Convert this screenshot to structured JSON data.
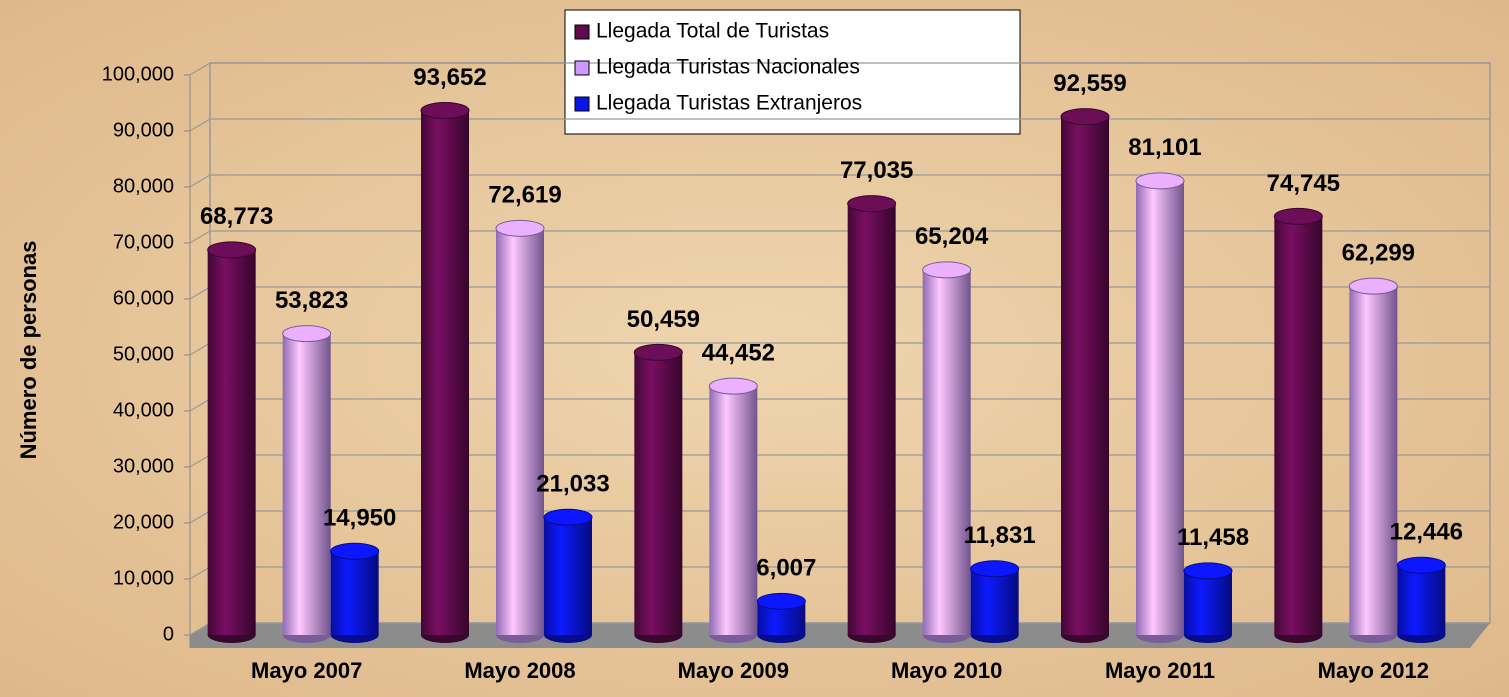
{
  "chart_data": {
    "type": "bar",
    "y_label": "Número de personas",
    "categories": [
      "Mayo 2007",
      "Mayo 2008",
      "Mayo 2009",
      "Mayo 2010",
      "Mayo 2011",
      "Mayo 2012"
    ],
    "series": [
      {
        "name": "Llegada Total de Turistas",
        "color": "#5e0b4c",
        "values": [
          68773,
          93652,
          50459,
          77035,
          92559,
          74745
        ],
        "value_labels": [
          "68,773",
          "93,652",
          "50,459",
          "77,035",
          "92,559",
          "74,745"
        ]
      },
      {
        "name": "Llegada Turistas Nacionales",
        "color": "#cc99ff",
        "values": [
          53823,
          72619,
          44452,
          65204,
          81101,
          62299
        ],
        "value_labels": [
          "53,823",
          "72,619",
          "44,452",
          "65,204",
          "81,101",
          "62,299"
        ]
      },
      {
        "name": "Llegada Turistas Extranjeros",
        "color": "#0a14e6",
        "values": [
          14950,
          21033,
          6007,
          11831,
          11458,
          12446
        ],
        "value_labels": [
          "14,950",
          "21,033",
          "6,007",
          "11,831",
          "11,458",
          "12,446"
        ]
      }
    ],
    "ylim": [
      0,
      100000
    ],
    "yticks": [
      0,
      {
        "value": 10000,
        "label": "10,000"
      },
      {
        "value": 20000,
        "label": "20,000"
      },
      {
        "value": 30000,
        "label": "30,000"
      },
      {
        "value": 40000,
        "label": "40,000"
      },
      {
        "value": 50000,
        "label": "50,000"
      },
      {
        "value": 60000,
        "label": "60,000"
      },
      {
        "value": 70000,
        "label": "70,000"
      },
      {
        "value": 80000,
        "label": "80,000"
      },
      {
        "value": 90000,
        "label": "90,000"
      },
      {
        "value": 100000,
        "label": "100,000"
      }
    ],
    "grid": true,
    "legend": "top"
  }
}
